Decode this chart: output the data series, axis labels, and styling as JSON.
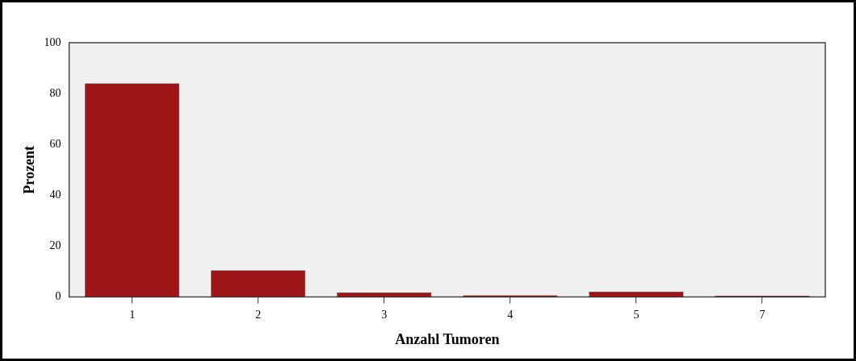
{
  "chart_data": {
    "type": "bar",
    "xlabel": "Anzahl Tumoren",
    "ylabel": "Prozent",
    "categories": [
      "1",
      "2",
      "3",
      "4",
      "5",
      "7"
    ],
    "values": [
      84,
      10.5,
      1.8,
      0.7,
      2.1,
      0.5
    ],
    "color": "#9e1518",
    "ylim": [
      0,
      100
    ],
    "yticks": [
      0,
      20,
      40,
      60,
      80,
      100
    ],
    "grid": false,
    "legend": false
  }
}
